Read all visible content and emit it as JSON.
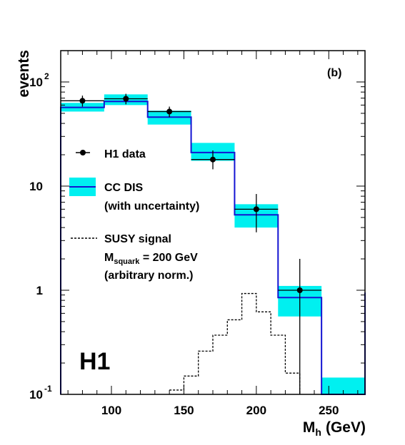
{
  "chart_data": {
    "type": "histogram",
    "panel_label": "(b)",
    "experiment_label": "H1",
    "xlabel_main": "M",
    "xlabel_sub": "h",
    "xlabel_unit": "(GeV)",
    "ylabel": "events",
    "xlim": [
      65,
      275
    ],
    "ylim": [
      0.1,
      200
    ],
    "yscale": "log",
    "x_ticks": [
      "100",
      "150",
      "200",
      "250"
    ],
    "x_tick_values": [
      100,
      150,
      200,
      250
    ],
    "y_tick_labels": [
      {
        "value": 100,
        "base": "10",
        "exp": "2"
      },
      {
        "value": 10,
        "base": "10",
        "exp": ""
      },
      {
        "value": 1,
        "base": "1",
        "exp": ""
      },
      {
        "value": 0.1,
        "base": "10",
        "exp": "-1"
      }
    ],
    "legend": {
      "data": "H1 data",
      "mc_line1": "CC DIS",
      "mc_line2": "(with uncertainty)",
      "signal_line1": "SUSY signal",
      "signal_mass_main": "M",
      "signal_mass_sub": "squark",
      "signal_mass_rest": " = 200 GeV",
      "signal_line3": "(arbitrary norm.)"
    },
    "colors": {
      "band": "#00f0f0",
      "mc_line": "#1414d2",
      "data": "#000000",
      "signal": "#000000"
    },
    "bin_edges": [
      65,
      95,
      125,
      155,
      185,
      215,
      245,
      275
    ],
    "cc_dis": {
      "name": "CC DIS",
      "values": [
        57,
        65,
        46,
        21,
        5.3,
        0.85,
        0.05
      ],
      "band_low": [
        52,
        60,
        39,
        17.5,
        4.0,
        0.56,
        0.1
      ],
      "band_high": [
        63,
        76,
        53,
        26,
        6.7,
        1.1,
        0.145
      ]
    },
    "data": {
      "name": "H1 data",
      "x": [
        80,
        110,
        140,
        170,
        200,
        230
      ],
      "y": [
        66,
        69,
        52,
        18,
        6,
        1
      ],
      "y_low": [
        58,
        61,
        46,
        14.5,
        3.6,
        0.05
      ],
      "y_high": [
        74,
        77,
        58,
        22,
        8.4,
        2.0
      ],
      "xerr_low": [
        65,
        95,
        125,
        155,
        185,
        215
      ],
      "xerr_high": [
        95,
        125,
        155,
        185,
        215,
        245
      ]
    },
    "susy_signal": {
      "name": "SUSY signal",
      "bin_edges": [
        140,
        150,
        160,
        170,
        180,
        190,
        200,
        210,
        220,
        230
      ],
      "values": [
        0.11,
        0.15,
        0.26,
        0.37,
        0.52,
        0.93,
        0.62,
        0.37,
        0.16
      ]
    }
  }
}
